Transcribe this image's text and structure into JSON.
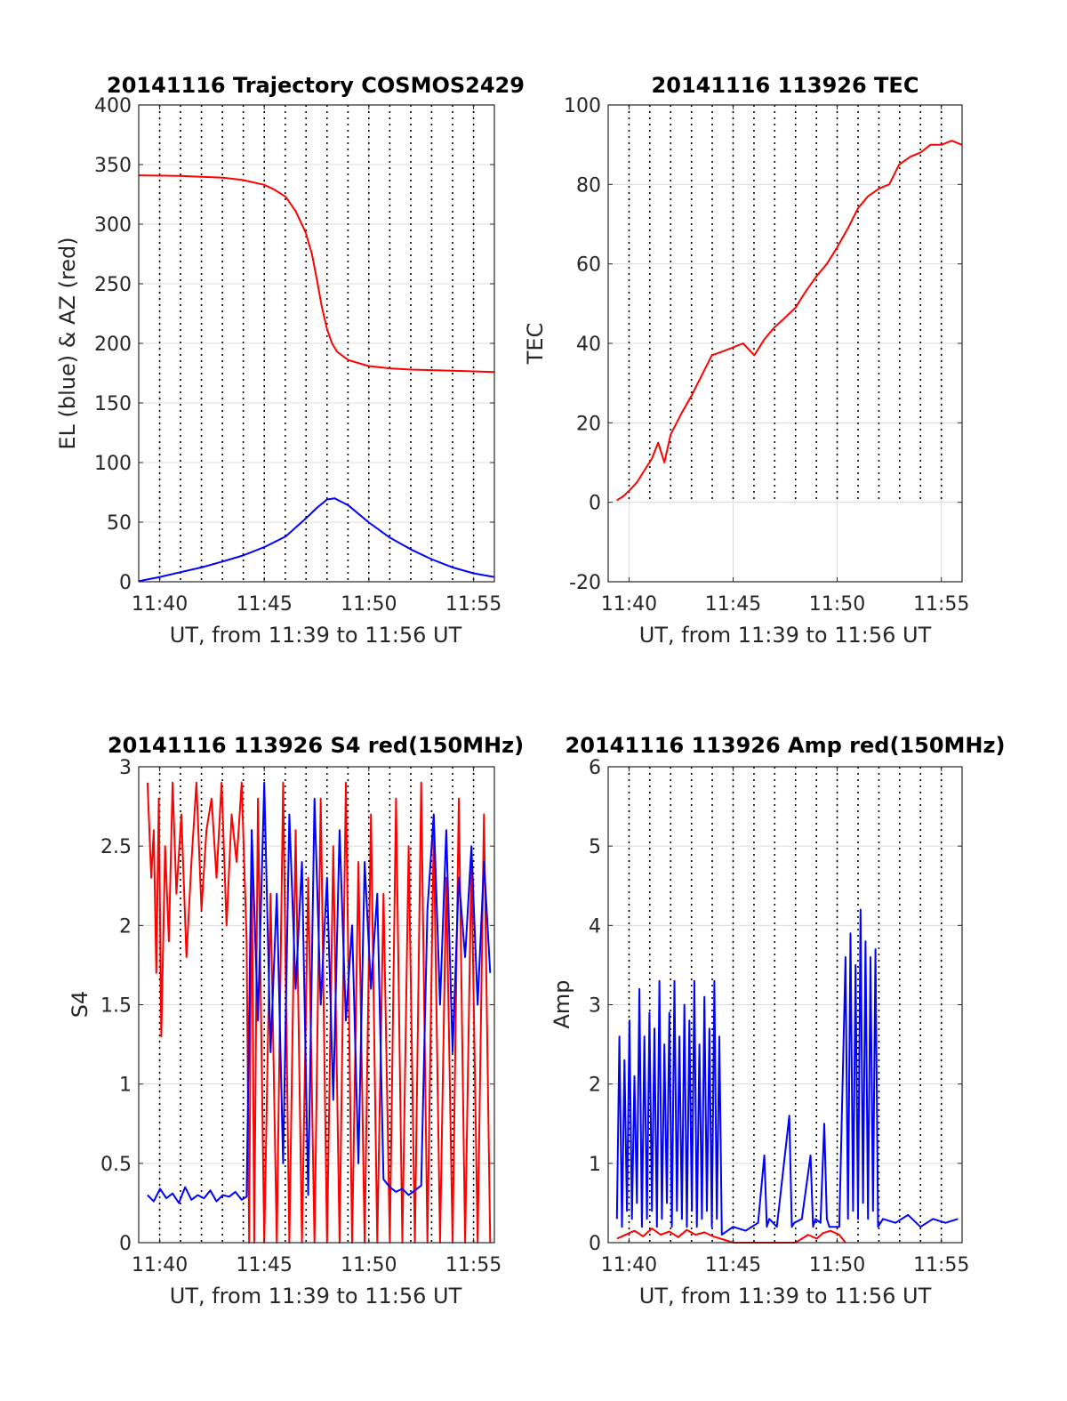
{
  "colors": {
    "az": "#ff0000",
    "el": "#0000ff",
    "tec": "#ff0000",
    "red_series": "#ff0000",
    "blue_series": "#0000ff",
    "grid": "#dcdcdc",
    "dotted_markers": "#000000"
  },
  "chart_data": [
    {
      "id": "traj",
      "type": "line",
      "title": "20141116 Trajectory COSMOS2429",
      "xlabel": "UT, from 11:39 to 11:56 UT",
      "ylabel": "EL (blue) & AZ (red)",
      "xlim": [
        11.65,
        11.9333
      ],
      "ylim": [
        0,
        400
      ],
      "yticks": [
        0,
        50,
        100,
        150,
        200,
        250,
        300,
        350,
        400
      ],
      "ytick_labels": [
        "0",
        "50",
        "100",
        "150",
        "200",
        "250",
        "300",
        "350",
        "400"
      ],
      "xticks": [
        11.6667,
        11.75,
        11.8333,
        11.9167
      ],
      "xtick_labels": [
        "11:40",
        "11:45",
        "11:50",
        "11:55"
      ],
      "grid": true,
      "dotted_vlines": [
        11.6667,
        11.6833,
        11.7,
        11.7167,
        11.7333,
        11.75,
        11.7667,
        11.7833,
        11.8,
        11.8167,
        11.8333,
        11.85,
        11.8667,
        11.8833,
        11.9,
        11.9167
      ],
      "series": [
        {
          "color": "az",
          "x": [
            11.65,
            11.683,
            11.717,
            11.733,
            11.75,
            11.758,
            11.767,
            11.775,
            11.783,
            11.788,
            11.792,
            11.796,
            11.8,
            11.804,
            11.808,
            11.817,
            11.833,
            11.85,
            11.867,
            11.883,
            11.9,
            11.917,
            11.933
          ],
          "y": [
            341,
            340.5,
            339,
            337,
            333,
            329,
            323,
            311,
            293,
            275,
            253,
            230,
            212,
            200,
            193,
            186,
            181,
            179,
            178,
            177.5,
            177,
            176.5,
            176
          ]
        },
        {
          "color": "el",
          "x": [
            11.65,
            11.667,
            11.683,
            11.7,
            11.717,
            11.733,
            11.75,
            11.767,
            11.783,
            11.792,
            11.8,
            11.806,
            11.817,
            11.833,
            11.85,
            11.867,
            11.883,
            11.9,
            11.917,
            11.933
          ],
          "y": [
            0.5,
            4,
            8,
            12,
            17,
            22,
            29,
            38,
            53,
            62,
            69,
            70,
            64,
            50,
            37,
            27,
            19,
            12,
            7,
            4
          ]
        }
      ]
    },
    {
      "id": "tec",
      "type": "line",
      "title": "20141116 113926 TEC",
      "xlabel": "UT, from 11:39 to 11:56 UT",
      "ylabel": "TEC",
      "xlim": [
        11.65,
        11.9333
      ],
      "ylim": [
        -20,
        100
      ],
      "yticks": [
        -20,
        0,
        20,
        40,
        60,
        80,
        100
      ],
      "ytick_labels": [
        "-20",
        "0",
        "20",
        "40",
        "60",
        "80",
        "100"
      ],
      "xticks": [
        11.6667,
        11.75,
        11.8333,
        11.9167
      ],
      "xtick_labels": [
        "11:40",
        "11:45",
        "11:50",
        "11:55"
      ],
      "grid": true,
      "dotted_vlines": [
        11.6667,
        11.6833,
        11.7,
        11.7167,
        11.7333,
        11.75,
        11.7667,
        11.7833,
        11.8,
        11.8167,
        11.8333,
        11.85,
        11.8667,
        11.8833,
        11.9,
        11.9167
      ],
      "dotted_vlines_ymin": 0,
      "series": [
        {
          "color": "tec",
          "x": [
            11.657,
            11.662,
            11.667,
            11.673,
            11.679,
            11.685,
            11.69,
            11.695,
            11.7,
            11.708,
            11.717,
            11.725,
            11.733,
            11.742,
            11.75,
            11.758,
            11.767,
            11.775,
            11.783,
            11.79,
            11.8,
            11.808,
            11.817,
            11.825,
            11.833,
            11.842,
            11.85,
            11.858,
            11.867,
            11.875,
            11.883,
            11.892,
            11.9,
            11.908,
            11.917,
            11.925,
            11.933
          ],
          "y": [
            0.5,
            1.5,
            3,
            5,
            8,
            11,
            15,
            10,
            17,
            22,
            27,
            32,
            37,
            38,
            39,
            40,
            37,
            41,
            44,
            46,
            49,
            53,
            57,
            60,
            64,
            69,
            74,
            77,
            79,
            80,
            85,
            87,
            88,
            90,
            90,
            91,
            90
          ]
        }
      ]
    },
    {
      "id": "s4",
      "type": "line",
      "title": "20141116 113926 S4 red(150MHz)",
      "xlabel": "UT, from 11:39 to 11:56 UT",
      "ylabel": "S4",
      "xlim": [
        11.65,
        11.9333
      ],
      "ylim": [
        0,
        3
      ],
      "yticks": [
        0,
        0.5,
        1,
        1.5,
        2,
        2.5,
        3
      ],
      "ytick_labels": [
        "0",
        "0.5",
        "1",
        "1.5",
        "2",
        "2.5",
        "3"
      ],
      "xticks": [
        11.6667,
        11.75,
        11.8333,
        11.9167
      ],
      "xtick_labels": [
        "11:40",
        "11:45",
        "11:50",
        "11:55"
      ],
      "grid": true,
      "dotted_vlines": [
        11.6667,
        11.6833,
        11.7,
        11.7167,
        11.7333,
        11.75,
        11.7667,
        11.7833,
        11.8,
        11.8167,
        11.8333,
        11.85,
        11.8667,
        11.8833,
        11.9,
        11.9167
      ],
      "series": [
        {
          "color": "red_series",
          "x": [
            11.657,
            11.66,
            11.662,
            11.664,
            11.666,
            11.668,
            11.671,
            11.674,
            11.677,
            11.68,
            11.684,
            11.688,
            11.692,
            11.696,
            11.7,
            11.704,
            11.708,
            11.712,
            11.716,
            11.72,
            11.724,
            11.728,
            11.732,
            11.736,
            11.738,
            11.74,
            11.742,
            11.745,
            11.75,
            11.755,
            11.76,
            11.765,
            11.77,
            11.775,
            11.78,
            11.785,
            11.79,
            11.795,
            11.8,
            11.805,
            11.81,
            11.815,
            11.82,
            11.825,
            11.83,
            11.835,
            11.84,
            11.845,
            11.85,
            11.855,
            11.86,
            11.865,
            11.87,
            11.875,
            11.88,
            11.885,
            11.89,
            11.895,
            11.9,
            11.905,
            11.91,
            11.915,
            11.92,
            11.925,
            11.93
          ],
          "y": [
            2.9,
            2.3,
            2.6,
            1.7,
            2.8,
            1.3,
            2.5,
            1.9,
            2.9,
            2.2,
            2.7,
            1.8,
            2.4,
            2.9,
            2.1,
            2.6,
            2.8,
            2.3,
            2.9,
            2.0,
            2.7,
            2.4,
            2.9,
            1.9,
            0.0,
            2.6,
            0.0,
            2.8,
            0.0,
            2.2,
            0.0,
            2.9,
            0.0,
            2.6,
            0.0,
            2.3,
            0.0,
            2.8,
            0.0,
            2.5,
            0.0,
            2.9,
            0.0,
            2.4,
            0.0,
            2.7,
            0.0,
            2.2,
            0.0,
            2.8,
            0.0,
            2.5,
            0.0,
            2.9,
            0.0,
            2.6,
            0.0,
            2.3,
            0.0,
            2.8,
            0.0,
            2.4,
            0.0,
            2.7,
            0.0
          ]
        },
        {
          "color": "blue_series",
          "x": [
            11.657,
            11.662,
            11.667,
            11.672,
            11.677,
            11.682,
            11.687,
            11.692,
            11.697,
            11.702,
            11.707,
            11.712,
            11.717,
            11.722,
            11.727,
            11.732,
            11.736,
            11.74,
            11.745,
            11.75,
            11.755,
            11.76,
            11.765,
            11.77,
            11.775,
            11.78,
            11.785,
            11.79,
            11.795,
            11.8,
            11.805,
            11.81,
            11.815,
            11.82,
            11.825,
            11.83,
            11.835,
            11.84,
            11.845,
            11.85,
            11.855,
            11.86,
            11.865,
            11.87,
            11.875,
            11.88,
            11.885,
            11.89,
            11.895,
            11.9,
            11.905,
            11.91,
            11.915,
            11.92,
            11.925,
            11.93
          ],
          "y": [
            0.3,
            0.26,
            0.34,
            0.28,
            0.31,
            0.25,
            0.35,
            0.27,
            0.3,
            0.28,
            0.33,
            0.26,
            0.3,
            0.29,
            0.32,
            0.27,
            0.29,
            2.6,
            1.4,
            2.9,
            1.2,
            2.2,
            0.5,
            2.7,
            1.6,
            2.4,
            0.3,
            2.8,
            1.5,
            2.3,
            0.9,
            2.6,
            1.4,
            2.0,
            0.5,
            2.4,
            1.6,
            2.2,
            0.4,
            0.35,
            0.32,
            0.34,
            0.3,
            0.33,
            0.36,
            2.1,
            2.7,
            1.5,
            2.6,
            1.2,
            2.3,
            1.8,
            2.5,
            1.5,
            2.4,
            1.7
          ]
        }
      ]
    },
    {
      "id": "amp",
      "type": "line",
      "title": "20141116 113926 Amp red(150MHz)",
      "xlabel": "UT, from 11:39 to 11:56 UT",
      "ylabel": "Amp",
      "xlim": [
        11.65,
        11.9333
      ],
      "ylim": [
        0,
        6
      ],
      "yticks": [
        0,
        1,
        2,
        3,
        4,
        5,
        6
      ],
      "ytick_labels": [
        "0",
        "1",
        "2",
        "3",
        "4",
        "5",
        "6"
      ],
      "xticks": [
        11.6667,
        11.75,
        11.8333,
        11.9167
      ],
      "xtick_labels": [
        "11:40",
        "11:45",
        "11:50",
        "11:55"
      ],
      "grid": true,
      "dotted_vlines": [
        11.6667,
        11.6833,
        11.7,
        11.7167,
        11.7333,
        11.75,
        11.7667,
        11.7833,
        11.8,
        11.8167,
        11.8333,
        11.85,
        11.8667,
        11.8833,
        11.9,
        11.9167
      ],
      "series": [
        {
          "color": "red_series",
          "x": [
            11.657,
            11.664,
            11.671,
            11.678,
            11.685,
            11.692,
            11.699,
            11.706,
            11.713,
            11.72,
            11.727,
            11.734,
            11.74,
            11.75,
            11.8,
            11.81,
            11.817,
            11.822,
            11.828,
            11.835,
            11.84
          ],
          "y": [
            0.05,
            0.1,
            0.15,
            0.08,
            0.18,
            0.1,
            0.14,
            0.07,
            0.16,
            0.1,
            0.13,
            0.08,
            0.05,
            0.0,
            0.0,
            0.1,
            0.05,
            0.12,
            0.15,
            0.1,
            0.0
          ]
        },
        {
          "color": "blue_series",
          "x": [
            11.657,
            11.659,
            11.661,
            11.663,
            11.665,
            11.667,
            11.669,
            11.671,
            11.673,
            11.675,
            11.677,
            11.679,
            11.681,
            11.683,
            11.685,
            11.687,
            11.689,
            11.691,
            11.693,
            11.695,
            11.697,
            11.699,
            11.701,
            11.703,
            11.705,
            11.707,
            11.709,
            11.711,
            11.713,
            11.715,
            11.717,
            11.719,
            11.721,
            11.723,
            11.725,
            11.727,
            11.729,
            11.731,
            11.733,
            11.735,
            11.737,
            11.739,
            11.741,
            11.75,
            11.76,
            11.77,
            11.775,
            11.777,
            11.779,
            11.785,
            11.795,
            11.797,
            11.799,
            11.805,
            11.812,
            11.814,
            11.816,
            11.82,
            11.823,
            11.825,
            11.827,
            11.835,
            11.84,
            11.842,
            11.844,
            11.846,
            11.848,
            11.85,
            11.852,
            11.854,
            11.856,
            11.858,
            11.86,
            11.862,
            11.864,
            11.866,
            11.87,
            11.88,
            11.89,
            11.9,
            11.91,
            11.92,
            11.93
          ],
          "y": [
            0.3,
            2.6,
            0.2,
            2.3,
            0.4,
            2.8,
            0.3,
            2.1,
            0.5,
            3.2,
            0.2,
            2.6,
            0.3,
            2.9,
            0.4,
            2.7,
            0.2,
            3.3,
            0.3,
            2.5,
            0.5,
            2.9,
            0.2,
            3.3,
            0.4,
            2.6,
            0.3,
            3.0,
            0.2,
            2.8,
            0.4,
            3.3,
            0.2,
            2.5,
            0.3,
            3.1,
            0.4,
            2.7,
            0.2,
            3.3,
            0.3,
            2.6,
            0.1,
            0.2,
            0.15,
            0.25,
            1.1,
            0.2,
            0.3,
            0.2,
            1.6,
            0.2,
            0.25,
            0.3,
            1.1,
            0.2,
            0.3,
            0.25,
            1.5,
            0.3,
            0.2,
            0.2,
            3.6,
            0.3,
            3.9,
            0.4,
            3.5,
            0.3,
            4.2,
            0.5,
            3.8,
            0.3,
            3.6,
            0.4,
            3.7,
            0.2,
            0.3,
            0.25,
            0.35,
            0.2,
            0.3,
            0.25,
            0.3
          ]
        }
      ]
    }
  ]
}
